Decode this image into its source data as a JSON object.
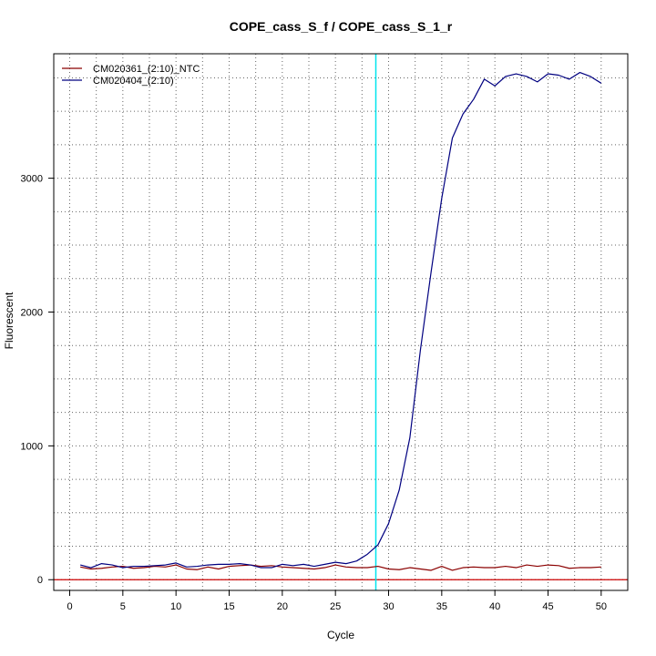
{
  "chart_data": {
    "type": "line",
    "title": "COPE_cass_S_f / COPE_cass_S_1_r",
    "xlabel": "Cycle",
    "ylabel": "Fluorescent",
    "xlim": [
      -1.5,
      52.5
    ],
    "ylim": [
      -80,
      3930
    ],
    "xticks": [
      0,
      5,
      10,
      15,
      20,
      25,
      30,
      35,
      40,
      45,
      50
    ],
    "yticks": [
      0,
      1000,
      2000,
      3000
    ],
    "grid": true,
    "legend_position": "top-left",
    "threshold": {
      "cycle": 28.8,
      "color": "#00e5ee"
    },
    "baseline": {
      "value": 0,
      "color": "#cc0000"
    },
    "x": [
      1,
      2,
      3,
      4,
      5,
      6,
      7,
      8,
      9,
      10,
      11,
      12,
      13,
      14,
      15,
      16,
      17,
      18,
      19,
      20,
      21,
      22,
      23,
      24,
      25,
      26,
      27,
      28,
      29,
      30,
      31,
      32,
      33,
      34,
      35,
      36,
      37,
      38,
      39,
      40,
      41,
      42,
      43,
      44,
      45,
      46,
      47,
      48,
      49,
      50
    ],
    "series": [
      {
        "name": "CM020361_(2:10)_NTC",
        "color": "#8b0000",
        "values": [
          95,
          80,
          85,
          95,
          100,
          85,
          90,
          100,
          95,
          110,
          80,
          75,
          95,
          80,
          100,
          105,
          110,
          100,
          105,
          95,
          90,
          85,
          80,
          90,
          110,
          95,
          90,
          90,
          100,
          80,
          75,
          90,
          80,
          70,
          100,
          70,
          90,
          95,
          90,
          90,
          100,
          90,
          110,
          100,
          110,
          105,
          85,
          90,
          90,
          95
        ]
      },
      {
        "name": "CM020404_(2:10)",
        "color": "#000080",
        "values": [
          110,
          90,
          120,
          110,
          90,
          100,
          100,
          105,
          110,
          125,
          95,
          100,
          110,
          115,
          115,
          120,
          110,
          90,
          90,
          115,
          105,
          115,
          100,
          115,
          130,
          120,
          140,
          190,
          260,
          420,
          670,
          1060,
          1720,
          2300,
          2850,
          3300,
          3480,
          3590,
          3740,
          3690,
          3760,
          3780,
          3760,
          3720,
          3780,
          3770,
          3740,
          3790,
          3760,
          3710
        ]
      }
    ]
  }
}
